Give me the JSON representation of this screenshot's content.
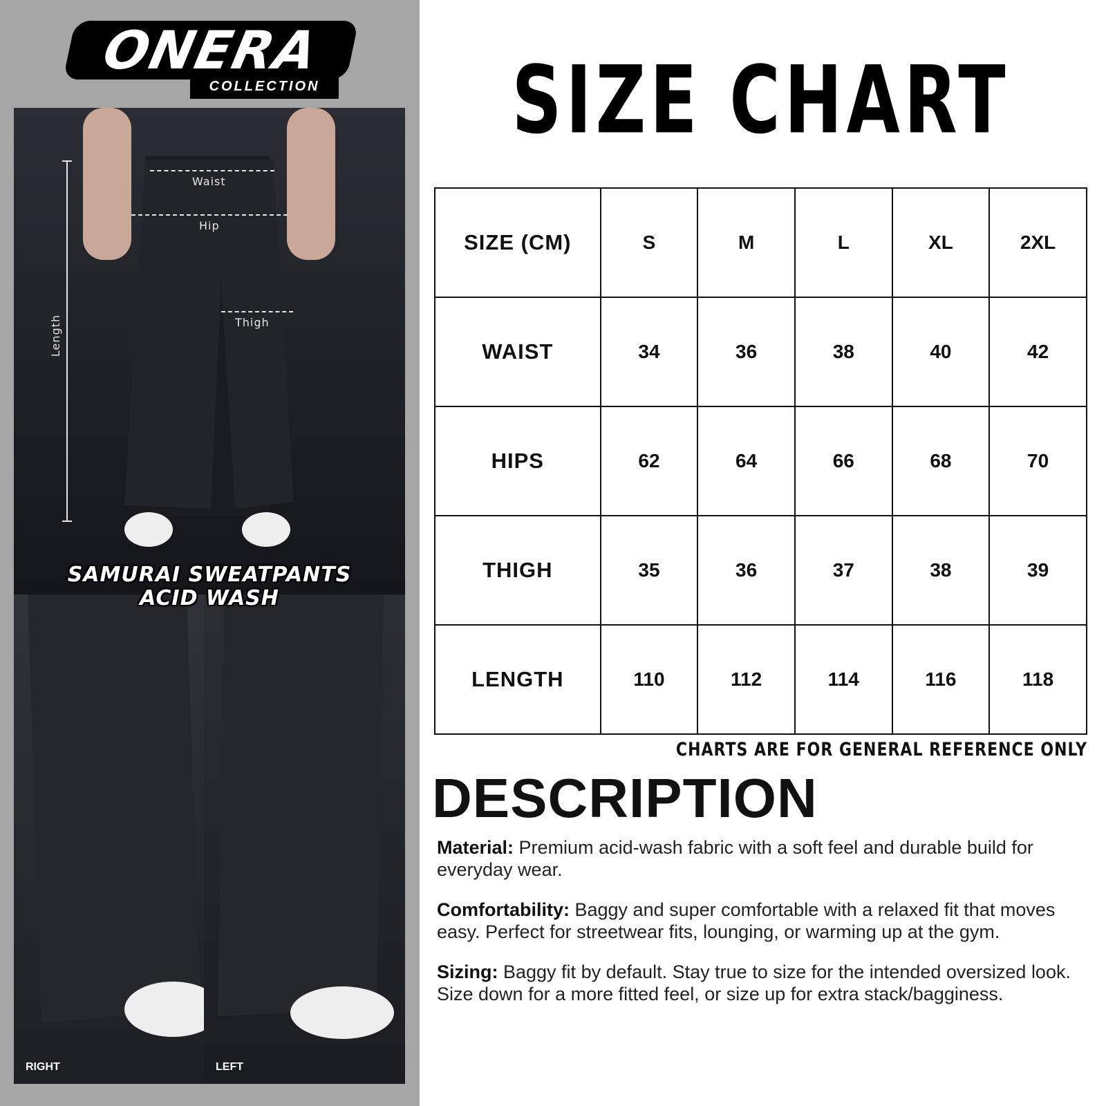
{
  "brand": {
    "name": "ONERA",
    "sub": "COLLECTION"
  },
  "product": {
    "line1": "SAMURAI SWEATPANTS",
    "line2": "ACID WASH"
  },
  "measurements": {
    "waist": "Waist",
    "hip": "Hip",
    "thigh": "Thigh",
    "length": "Length"
  },
  "views": {
    "right": "RIGHT",
    "left": "LEFT"
  },
  "title": "SIZE CHART",
  "table": {
    "header": [
      "SIZE (CM)",
      "S",
      "M",
      "L",
      "XL",
      "2XL"
    ],
    "rows": [
      [
        "WAIST",
        "34",
        "36",
        "38",
        "40",
        "42"
      ],
      [
        "HIPS",
        "62",
        "64",
        "66",
        "68",
        "70"
      ],
      [
        "THIGH",
        "35",
        "36",
        "37",
        "38",
        "39"
      ],
      [
        "LENGTH",
        "110",
        "112",
        "114",
        "116",
        "118"
      ]
    ]
  },
  "note": "CHARTS ARE FOR GENERAL REFERENCE ONLY",
  "description": {
    "heading": "DESCRIPTION",
    "items": [
      {
        "label": "Material:",
        "text": " Premium acid-wash fabric with a soft feel and durable build for everyday wear."
      },
      {
        "label": "Comfortability:",
        "text": " Baggy and super comfortable with a relaxed fit that moves easy. Perfect for streetwear fits, lounging, or warming up at the gym."
      },
      {
        "label": "Sizing:",
        "text": " Baggy fit by default. Stay true to size for the intended oversized look. Size down for a more fitted feel, or size up for extra stack/bagginess."
      }
    ]
  }
}
